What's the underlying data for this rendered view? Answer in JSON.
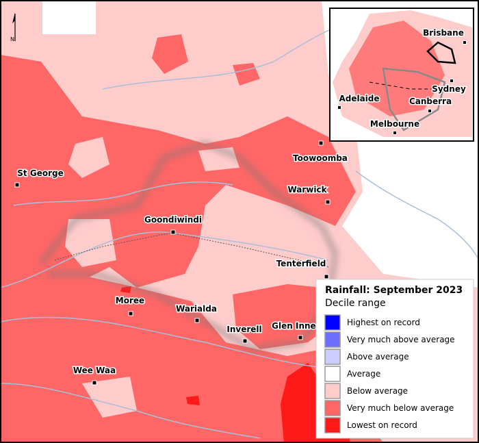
{
  "map": {
    "north_label": "N",
    "towns": [
      {
        "label": "St George"
      },
      {
        "label": "Toowoomba"
      },
      {
        "label": "Warwick"
      },
      {
        "label": "Goondiwindi"
      },
      {
        "label": "Tenterfield"
      },
      {
        "label": "Moree"
      },
      {
        "label": "Warialda"
      },
      {
        "label": "Inverell"
      },
      {
        "label": "Glen Innes"
      },
      {
        "label": "Wee Waa"
      }
    ],
    "inset_cities": [
      {
        "label": "Brisbane"
      },
      {
        "label": "Sydney"
      },
      {
        "label": "Canberra"
      },
      {
        "label": "Adelaide"
      },
      {
        "label": "Melbourne"
      }
    ]
  },
  "legend": {
    "title": "Rainfall: September 2023",
    "subtitle": "Decile range",
    "items": [
      {
        "label": "Highest on record",
        "color": "#0000ff"
      },
      {
        "label": "Very much above average",
        "color": "#6f6fff"
      },
      {
        "label": "Above average",
        "color": "#ccccff"
      },
      {
        "label": "Average",
        "color": "#ffffff"
      },
      {
        "label": "Below average",
        "color": "#ffcccc"
      },
      {
        "label": "Very much below average",
        "color": "#ff6666"
      },
      {
        "label": "Lowest on record",
        "color": "#ff1a1a"
      }
    ]
  }
}
